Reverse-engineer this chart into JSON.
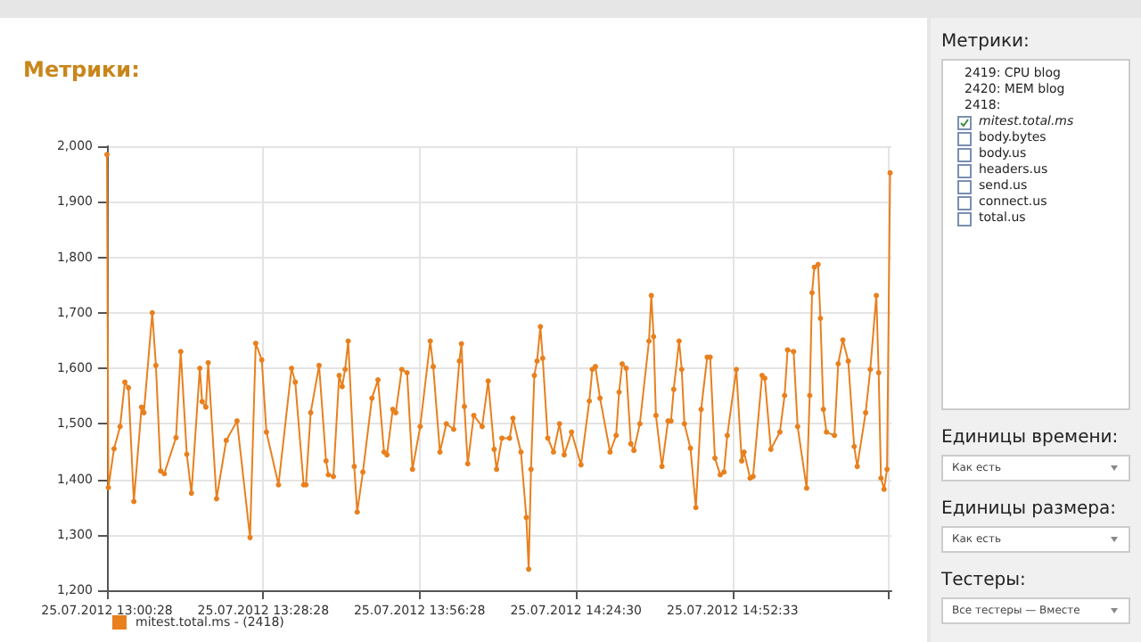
{
  "chart_data": [
    {
      "type": "line",
      "title": "Метрики:",
      "legend": "bottom",
      "grid": true,
      "marker": "circle",
      "line_style": "solid",
      "xlim": [
        "2012-07-25T13:00:28",
        "2012-07-25T15:21:00"
      ],
      "xticks": [
        {
          "value": "2012-07-25T13:00:28",
          "label": "25.07.2012 13:00:28"
        },
        {
          "value": "2012-07-25T13:28:28",
          "label": "25.07.2012 13:28:28"
        },
        {
          "value": "2012-07-25T13:56:28",
          "label": "25.07.2012 13:56:28"
        },
        {
          "value": "2012-07-25T14:24:30",
          "label": "25.07.2012 14:24:30"
        },
        {
          "value": "2012-07-25T14:52:33",
          "label": "25.07.2012 14:52:33"
        },
        {
          "value": "2012-07-25T15:20:35",
          "label": null
        }
      ],
      "ylim": [
        1200,
        2000
      ],
      "yticks": [
        {
          "value": 1200,
          "label": "1,200"
        },
        {
          "value": 1300,
          "label": "1,300"
        },
        {
          "value": 1400,
          "label": "1,400"
        },
        {
          "value": 1500,
          "label": "1,500"
        },
        {
          "value": 1600,
          "label": "1,600"
        },
        {
          "value": 1700,
          "label": "1,700"
        },
        {
          "value": 1800,
          "label": "1,800"
        },
        {
          "value": 1900,
          "label": "1,900"
        },
        {
          "value": 2000,
          "label": "2,000"
        }
      ],
      "series": [
        {
          "name": "mitest.total.ms - (2418)",
          "color": "#e8801e",
          "x": [
            "2012-07-25T13:00:28",
            "2012-07-25T13:00:43",
            "2012-07-25T13:01:44",
            "2012-07-25T13:02:49",
            "2012-07-25T13:03:40",
            "2012-07-25T13:04:19",
            "2012-07-25T13:05:17",
            "2012-07-25T13:06:40",
            "2012-07-25T13:07:05",
            "2012-07-25T13:08:35",
            "2012-07-25T13:09:14",
            "2012-07-25T13:10:05",
            "2012-07-25T13:10:44",
            "2012-07-25T13:12:50",
            "2012-07-25T13:13:41",
            "2012-07-25T13:14:46",
            "2012-07-25T13:15:36",
            "2012-07-25T13:17:06",
            "2012-07-25T13:17:31",
            "2012-07-25T13:18:11",
            "2012-07-25T13:18:36",
            "2012-07-25T13:20:06",
            "2012-07-25T13:21:50",
            "2012-07-25T13:23:46",
            "2012-07-25T13:26:06",
            "2012-07-25T13:27:07",
            "2012-07-25T13:28:12",
            "2012-07-25T13:29:02",
            "2012-07-25T13:31:12",
            "2012-07-25T13:33:32",
            "2012-07-25T13:34:12",
            "2012-07-25T13:35:42",
            "2012-07-25T13:36:07",
            "2012-07-25T13:36:58",
            "2012-07-25T13:38:28",
            "2012-07-25T13:39:43",
            "2012-07-25T13:40:08",
            "2012-07-25T13:41:02",
            "2012-07-25T13:42:04",
            "2012-07-25T13:42:36",
            "2012-07-25T13:43:08",
            "2012-07-25T13:43:41",
            "2012-07-25T13:44:46",
            "2012-07-25T13:45:18",
            "2012-07-25T13:46:19",
            "2012-07-25T13:47:56",
            "2012-07-25T13:49:01",
            "2012-07-25T13:50:06",
            "2012-07-25T13:50:38",
            "2012-07-25T13:51:40",
            "2012-07-25T13:52:12",
            "2012-07-25T13:53:17",
            "2012-07-25T13:54:14",
            "2012-07-25T13:55:12",
            "2012-07-25T13:56:35",
            "2012-07-25T13:58:23",
            "2012-07-25T13:58:55",
            "2012-07-25T14:00:07",
            "2012-07-25T14:01:16",
            "2012-07-25T14:02:35",
            "2012-07-25T14:03:36",
            "2012-07-25T14:03:58",
            "2012-07-25T14:04:30",
            "2012-07-25T14:05:06",
            "2012-07-25T14:06:11",
            "2012-07-25T14:07:41",
            "2012-07-25T14:08:46",
            "2012-07-25T14:09:50",
            "2012-07-25T14:10:16",
            "2012-07-25T14:11:13",
            "2012-07-25T14:12:36",
            "2012-07-25T14:13:12",
            "2012-07-25T14:14:38",
            "2012-07-25T14:15:36",
            "2012-07-25T14:16:01",
            "2012-07-25T14:16:26",
            "2012-07-25T14:17:02",
            "2012-07-25T14:17:31",
            "2012-07-25T14:18:07",
            "2012-07-25T14:18:32",
            "2012-07-25T14:19:26",
            "2012-07-25T14:20:28",
            "2012-07-25T14:21:32",
            "2012-07-25T14:22:23",
            "2012-07-25T14:23:42",
            "2012-07-25T14:25:23",
            "2012-07-25T14:26:53",
            "2012-07-25T14:27:25",
            "2012-07-25T14:27:58",
            "2012-07-25T14:28:48",
            "2012-07-25T14:30:36",
            "2012-07-25T14:31:41",
            "2012-07-25T14:32:13",
            "2012-07-25T14:32:46",
            "2012-07-25T14:33:29",
            "2012-07-25T14:34:19",
            "2012-07-25T14:34:52",
            "2012-07-25T14:35:56",
            "2012-07-25T14:37:34",
            "2012-07-25T14:37:59",
            "2012-07-25T14:38:24",
            "2012-07-25T14:38:49",
            "2012-07-25T14:39:54",
            "2012-07-25T14:40:59",
            "2012-07-25T14:41:31",
            "2012-07-25T14:42:00",
            "2012-07-25T14:42:58",
            "2012-07-25T14:43:26",
            "2012-07-25T14:43:55",
            "2012-07-25T14:45:00",
            "2012-07-25T14:45:58",
            "2012-07-25T14:46:55",
            "2012-07-25T14:48:00",
            "2012-07-25T14:48:32",
            "2012-07-25T14:49:23",
            "2012-07-25T14:50:20",
            "2012-07-25T14:51:00",
            "2012-07-25T14:51:36",
            "2012-07-25T14:53:13",
            "2012-07-25T14:54:11",
            "2012-07-25T14:54:36",
            "2012-07-25T14:55:41",
            "2012-07-25T14:56:13",
            "2012-07-25T14:57:50",
            "2012-07-25T14:58:19",
            "2012-07-25T14:59:24",
            "2012-07-25T15:01:01",
            "2012-07-25T15:01:52",
            "2012-07-25T15:02:24",
            "2012-07-25T15:03:29",
            "2012-07-25T15:04:12",
            "2012-07-25T15:05:49",
            "2012-07-25T15:06:22",
            "2012-07-25T15:06:47",
            "2012-07-25T15:07:12",
            "2012-07-25T15:07:52",
            "2012-07-25T15:08:17",
            "2012-07-25T15:08:49",
            "2012-07-25T15:09:22",
            "2012-07-25T15:10:48",
            "2012-07-25T15:11:28",
            "2012-07-25T15:12:18",
            "2012-07-25T15:13:16",
            "2012-07-25T15:14:20",
            "2012-07-25T15:14:53",
            "2012-07-25T15:16:23",
            "2012-07-25T15:17:13",
            "2012-07-25T15:18:18",
            "2012-07-25T15:18:43",
            "2012-07-25T15:19:08",
            "2012-07-25T15:19:41",
            "2012-07-25T15:20:13",
            "2012-07-25T15:20:46"
          ],
          "values": [
            1985,
            1385,
            1455,
            1495,
            1575,
            1565,
            1360,
            1530,
            1520,
            1700,
            1605,
            1415,
            1410,
            1475,
            1630,
            1445,
            1375,
            1600,
            1540,
            1530,
            1610,
            1365,
            1470,
            1505,
            1295,
            1645,
            1615,
            1485,
            1390,
            1600,
            1575,
            1390,
            1390,
            1520,
            1605,
            1433,
            1408,
            1405,
            1587,
            1567,
            1598,
            1649,
            1423,
            1341,
            1413,
            1546,
            1579,
            1449,
            1444,
            1526,
            1520,
            1598,
            1592,
            1418,
            1495,
            1649,
            1603,
            1449,
            1500,
            1490,
            1613,
            1644,
            1531,
            1428,
            1515,
            1495,
            1577,
            1454,
            1418,
            1474,
            1474,
            1510,
            1449,
            1331,
            1238,
            1418,
            1587,
            1613,
            1675,
            1618,
            1474,
            1449,
            1500,
            1444,
            1485,
            1426,
            1541,
            1598,
            1603,
            1546,
            1449,
            1479,
            1557,
            1608,
            1600,
            1464,
            1452,
            1500,
            1649,
            1731,
            1657,
            1515,
            1423,
            1505,
            1505,
            1562,
            1649,
            1598,
            1500,
            1456,
            1349,
            1526,
            1620,
            1620,
            1438,
            1408,
            1413,
            1479,
            1598,
            1433,
            1449,
            1402,
            1405,
            1587,
            1582,
            1454,
            1485,
            1551,
            1633,
            1630,
            1495,
            1384,
            1551,
            1736,
            1782,
            1787,
            1690,
            1526,
            1485,
            1479,
            1608,
            1651,
            1613,
            1459,
            1423,
            1520,
            1598,
            1731,
            1592,
            1402,
            1382,
            1418,
            1952
          ]
        }
      ]
    },
    {
      "type": "other",
      "title": "Метрики:",
      "annotations": [
        "2419: CPU blog",
        "2420: MEM blog",
        "2418:",
        "mitest.total.ms",
        "body.bytes",
        "body.us",
        "headers.us",
        "send.us",
        "connect.us",
        "total.us",
        "Единицы времени:",
        "Как есть",
        "Единицы размера:",
        "Как есть",
        "Тестеры:",
        "Все тестеры — Вместе"
      ]
    }
  ]
}
